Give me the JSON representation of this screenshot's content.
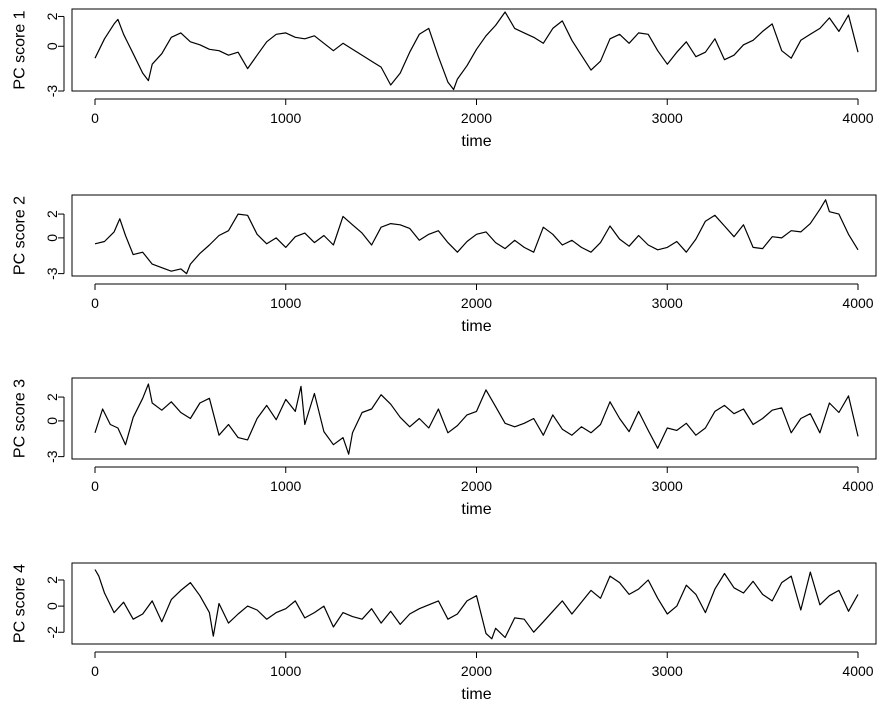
{
  "chart_data": [
    {
      "type": "line",
      "title": "",
      "xlabel": "time",
      "ylabel": "PC score 1",
      "xlim": [
        0,
        4000
      ],
      "ylim": [
        -3,
        2.5
      ],
      "x_ticks": [
        0,
        1000,
        2000,
        3000,
        4000
      ],
      "y_ticks": [
        -3,
        0,
        2
      ],
      "series": [
        {
          "x": [
            0,
            50,
            100,
            120,
            150,
            200,
            250,
            280,
            300,
            350,
            400,
            450,
            500,
            550,
            600,
            650,
            700,
            750,
            800,
            850,
            900,
            950,
            1000,
            1050,
            1100,
            1150,
            1200,
            1250,
            1300,
            1350,
            1400,
            1450,
            1500,
            1550,
            1600,
            1650,
            1700,
            1750,
            1800,
            1850,
            1880,
            1900,
            1950,
            2000,
            2050,
            2100,
            2150,
            2200,
            2250,
            2300,
            2350,
            2400,
            2450,
            2500,
            2550,
            2600,
            2650,
            2700,
            2750,
            2800,
            2850,
            2900,
            2950,
            3000,
            3050,
            3100,
            3150,
            3200,
            3250,
            3300,
            3350,
            3400,
            3450,
            3500,
            3550,
            3600,
            3650,
            3700,
            3750,
            3800,
            3850,
            3900,
            3950,
            4000
          ],
          "values": [
            -0.8,
            0.5,
            1.5,
            1.8,
            0.8,
            -0.5,
            -1.8,
            -2.3,
            -1.2,
            -0.5,
            0.6,
            0.9,
            0.3,
            0.1,
            -0.2,
            -0.3,
            -0.6,
            -0.4,
            -1.5,
            -0.6,
            0.3,
            0.8,
            0.9,
            0.6,
            0.5,
            0.7,
            0.2,
            -0.3,
            0.2,
            -0.2,
            -0.6,
            -1.0,
            -1.4,
            -2.6,
            -1.8,
            -0.4,
            0.8,
            1.2,
            -0.7,
            -2.4,
            -2.9,
            -2.2,
            -1.3,
            -0.2,
            0.7,
            1.4,
            2.3,
            1.2,
            0.9,
            0.6,
            0.2,
            1.2,
            1.7,
            0.4,
            -0.6,
            -1.6,
            -1.0,
            0.5,
            0.8,
            0.2,
            0.9,
            0.8,
            -0.3,
            -1.2,
            -0.4,
            0.3,
            -0.7,
            -0.4,
            0.5,
            -0.9,
            -0.6,
            0.1,
            0.4,
            1.0,
            1.5,
            -0.3,
            -0.8,
            0.4,
            0.8,
            1.2,
            1.9,
            1.0,
            2.1,
            -0.4
          ]
        }
      ]
    },
    {
      "type": "line",
      "title": "",
      "xlabel": "time",
      "ylabel": "PC score 2",
      "xlim": [
        0,
        4000
      ],
      "ylim": [
        -3.2,
        3.6
      ],
      "x_ticks": [
        0,
        1000,
        2000,
        3000,
        4000
      ],
      "y_ticks": [
        -3,
        0,
        2
      ],
      "series": [
        {
          "x": [
            0,
            50,
            100,
            130,
            160,
            200,
            250,
            300,
            350,
            400,
            450,
            480,
            500,
            550,
            600,
            650,
            700,
            750,
            800,
            850,
            900,
            950,
            1000,
            1050,
            1100,
            1150,
            1200,
            1250,
            1300,
            1350,
            1400,
            1450,
            1500,
            1550,
            1600,
            1650,
            1700,
            1750,
            1800,
            1850,
            1900,
            1950,
            2000,
            2050,
            2100,
            2150,
            2200,
            2250,
            2300,
            2350,
            2400,
            2450,
            2500,
            2550,
            2600,
            2650,
            2700,
            2750,
            2800,
            2850,
            2900,
            2950,
            3000,
            3050,
            3100,
            3150,
            3200,
            3250,
            3300,
            3350,
            3400,
            3450,
            3500,
            3550,
            3600,
            3650,
            3700,
            3750,
            3800,
            3830,
            3850,
            3900,
            3950,
            4000
          ],
          "values": [
            -0.5,
            -0.3,
            0.5,
            1.6,
            0.2,
            -1.4,
            -1.2,
            -2.2,
            -2.5,
            -2.8,
            -2.6,
            -3.0,
            -2.2,
            -1.3,
            -0.6,
            0.2,
            0.6,
            2.0,
            1.9,
            0.3,
            -0.5,
            0.0,
            -0.8,
            0.1,
            0.4,
            -0.4,
            0.2,
            -0.6,
            1.8,
            1.1,
            0.4,
            -0.6,
            0.9,
            1.2,
            1.1,
            0.8,
            -0.2,
            0.3,
            0.6,
            -0.4,
            -1.2,
            -0.3,
            0.3,
            0.5,
            -0.4,
            -0.9,
            -0.2,
            -0.8,
            -1.2,
            0.9,
            0.3,
            -0.6,
            -0.2,
            -0.8,
            -1.2,
            -0.4,
            1.0,
            -0.1,
            -0.7,
            0.2,
            -0.6,
            -1.0,
            -0.8,
            -0.3,
            -1.2,
            -0.1,
            1.4,
            1.9,
            1.0,
            0.1,
            1.1,
            -0.8,
            -0.9,
            0.1,
            0.0,
            0.6,
            0.5,
            1.2,
            2.4,
            3.2,
            2.2,
            2.0,
            0.3,
            -1.0
          ]
        }
      ]
    },
    {
      "type": "line",
      "title": "",
      "xlabel": "time",
      "ylabel": "PC score 3",
      "xlim": [
        0,
        4000
      ],
      "ylim": [
        -3.2,
        3.6
      ],
      "x_ticks": [
        0,
        1000,
        2000,
        3000,
        4000
      ],
      "y_ticks": [
        -3,
        0,
        2
      ],
      "series": [
        {
          "x": [
            0,
            40,
            80,
            120,
            160,
            200,
            250,
            280,
            300,
            350,
            400,
            450,
            500,
            550,
            600,
            650,
            700,
            750,
            800,
            850,
            900,
            950,
            1000,
            1050,
            1080,
            1100,
            1150,
            1200,
            1250,
            1300,
            1330,
            1350,
            1400,
            1450,
            1500,
            1550,
            1600,
            1650,
            1700,
            1750,
            1800,
            1850,
            1900,
            1950,
            2000,
            2050,
            2100,
            2150,
            2200,
            2250,
            2300,
            2350,
            2400,
            2450,
            2500,
            2550,
            2600,
            2650,
            2700,
            2750,
            2800,
            2850,
            2900,
            2950,
            3000,
            3050,
            3100,
            3150,
            3200,
            3250,
            3300,
            3350,
            3400,
            3450,
            3500,
            3550,
            3600,
            3650,
            3700,
            3750,
            3800,
            3850,
            3900,
            3950,
            4000
          ],
          "values": [
            -1.0,
            1.0,
            -0.3,
            -0.6,
            -2.0,
            0.3,
            1.9,
            3.1,
            1.5,
            0.9,
            1.6,
            0.7,
            0.2,
            1.5,
            1.9,
            -1.2,
            -0.3,
            -1.4,
            -1.6,
            0.2,
            1.3,
            0.1,
            1.8,
            0.8,
            2.9,
            -0.3,
            2.3,
            -0.9,
            -2.0,
            -1.4,
            -2.8,
            -1.0,
            0.7,
            1.0,
            2.2,
            1.4,
            0.3,
            -0.5,
            0.2,
            -0.6,
            1.0,
            -1.0,
            -0.4,
            0.5,
            0.8,
            2.6,
            1.2,
            -0.2,
            -0.5,
            -0.2,
            0.2,
            -1.2,
            0.5,
            -0.7,
            -1.2,
            -0.5,
            -1.0,
            -0.3,
            1.6,
            0.2,
            -0.9,
            0.8,
            -0.8,
            -2.3,
            -0.6,
            -0.8,
            -0.2,
            -1.2,
            -0.6,
            0.8,
            1.3,
            0.6,
            1.0,
            -0.3,
            0.2,
            0.9,
            1.1,
            -1.0,
            0.2,
            0.6,
            -1.0,
            1.5,
            0.7,
            2.1,
            -1.3
          ]
        }
      ]
    },
    {
      "type": "line",
      "title": "",
      "xlabel": "time",
      "ylabel": "PC score 4",
      "xlim": [
        0,
        4000
      ],
      "ylim": [
        -2.9,
        3.3
      ],
      "x_ticks": [
        0,
        1000,
        2000,
        3000,
        4000
      ],
      "y_ticks": [
        -2,
        0,
        2
      ],
      "series": [
        {
          "x": [
            0,
            20,
            50,
            100,
            150,
            200,
            250,
            300,
            350,
            400,
            450,
            500,
            550,
            600,
            620,
            650,
            700,
            750,
            800,
            850,
            900,
            950,
            1000,
            1050,
            1100,
            1150,
            1200,
            1250,
            1300,
            1350,
            1400,
            1450,
            1500,
            1550,
            1600,
            1650,
            1700,
            1750,
            1800,
            1850,
            1900,
            1950,
            2000,
            2050,
            2080,
            2100,
            2150,
            2200,
            2250,
            2300,
            2350,
            2400,
            2450,
            2500,
            2550,
            2600,
            2650,
            2700,
            2750,
            2800,
            2850,
            2900,
            2950,
            3000,
            3050,
            3100,
            3150,
            3200,
            3250,
            3300,
            3350,
            3400,
            3450,
            3500,
            3550,
            3600,
            3650,
            3700,
            3750,
            3800,
            3850,
            3900,
            3950,
            4000
          ],
          "values": [
            2.8,
            2.3,
            1.0,
            -0.5,
            0.3,
            -1.0,
            -0.6,
            0.4,
            -1.2,
            0.5,
            1.2,
            1.8,
            0.8,
            -0.5,
            -2.3,
            0.2,
            -1.3,
            -0.6,
            0.0,
            -0.3,
            -1.0,
            -0.5,
            -0.2,
            0.4,
            -0.9,
            -0.5,
            0.0,
            -1.6,
            -0.5,
            -0.8,
            -1.0,
            -0.2,
            -1.3,
            -0.4,
            -1.4,
            -0.6,
            -0.2,
            0.1,
            0.4,
            -1.0,
            -0.6,
            0.4,
            0.8,
            -2.1,
            -2.5,
            -1.7,
            -2.4,
            -0.9,
            -1.0,
            -2.0,
            -1.2,
            -0.4,
            0.4,
            -0.6,
            0.3,
            1.2,
            0.6,
            2.3,
            1.8,
            0.9,
            1.3,
            2.0,
            0.6,
            -0.6,
            0.0,
            1.6,
            0.9,
            -0.5,
            1.3,
            2.5,
            1.4,
            1.0,
            1.9,
            0.9,
            0.4,
            1.8,
            2.3,
            -0.3,
            2.6,
            0.1,
            0.8,
            1.2,
            -0.4,
            0.9
          ]
        }
      ]
    }
  ]
}
